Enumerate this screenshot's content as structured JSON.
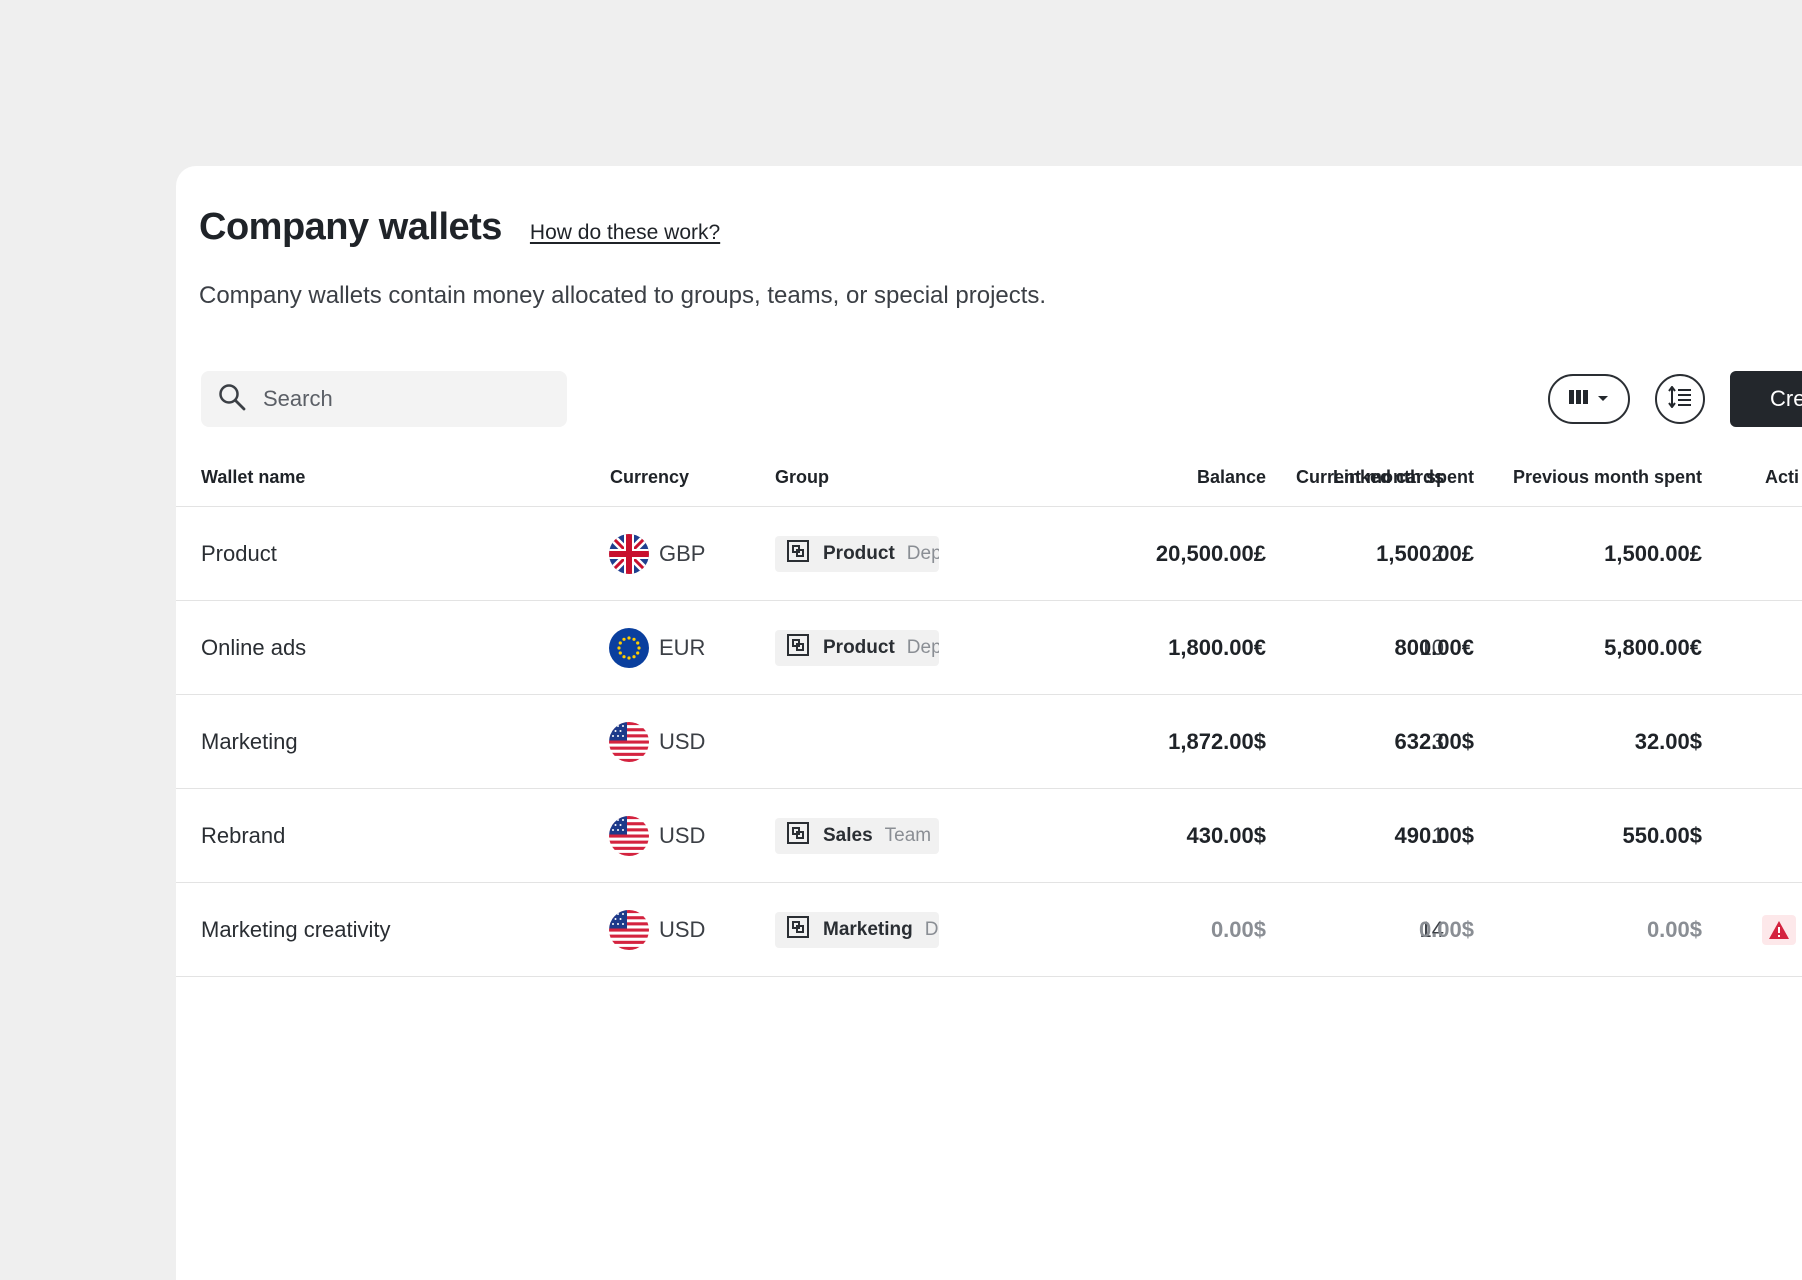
{
  "header": {
    "title": "Company wallets",
    "help_link": "How do these work?",
    "subtitle": "Company wallets contain money allocated to groups, teams, or special projects."
  },
  "toolbar": {
    "search_placeholder": "Search",
    "create_label": "Cre"
  },
  "table": {
    "columns": [
      "Wallet name",
      "Currency",
      "Group",
      "Balance",
      "Linked cards",
      "Current month spent",
      "Previous month spent",
      "Acti"
    ],
    "rows": [
      {
        "name": "Product",
        "currency": "GBP",
        "flag": "uk-flag-icon",
        "group": "Product",
        "group_type": "Dep",
        "balance": "20,500.00£",
        "linked_cards": "2",
        "current_month": "1,500.00£",
        "previous_month": "1,500.00£"
      },
      {
        "name": "Online ads",
        "currency": "EUR",
        "flag": "eu-flag-icon",
        "group": "Product",
        "group_type": "Dep",
        "balance": "1,800.00€",
        "linked_cards": "10",
        "current_month": "800.00€",
        "previous_month": "5,800.00€"
      },
      {
        "name": "Marketing",
        "currency": "USD",
        "flag": "us-flag-icon",
        "group": "",
        "group_type": "",
        "balance": "1,872.00$",
        "linked_cards": "3",
        "current_month": "632.00$",
        "previous_month": "32.00$"
      },
      {
        "name": "Rebrand",
        "currency": "USD",
        "flag": "us-flag-icon",
        "group": "Sales",
        "group_type": "Team",
        "balance": "430.00$",
        "linked_cards": "1",
        "current_month": "490.00$",
        "previous_month": "550.00$"
      },
      {
        "name": "Marketing creativity",
        "currency": "USD",
        "flag": "us-flag-icon",
        "group": "Marketing",
        "group_type": "D",
        "balance": "0.00$",
        "linked_cards": "14",
        "current_month": "0.00$",
        "previous_month": "0.00$"
      }
    ]
  },
  "colors": {
    "background": "#efefef",
    "primary_button": "#23272c",
    "warning": "#d4233f",
    "muted_text": "#8a8e94"
  }
}
